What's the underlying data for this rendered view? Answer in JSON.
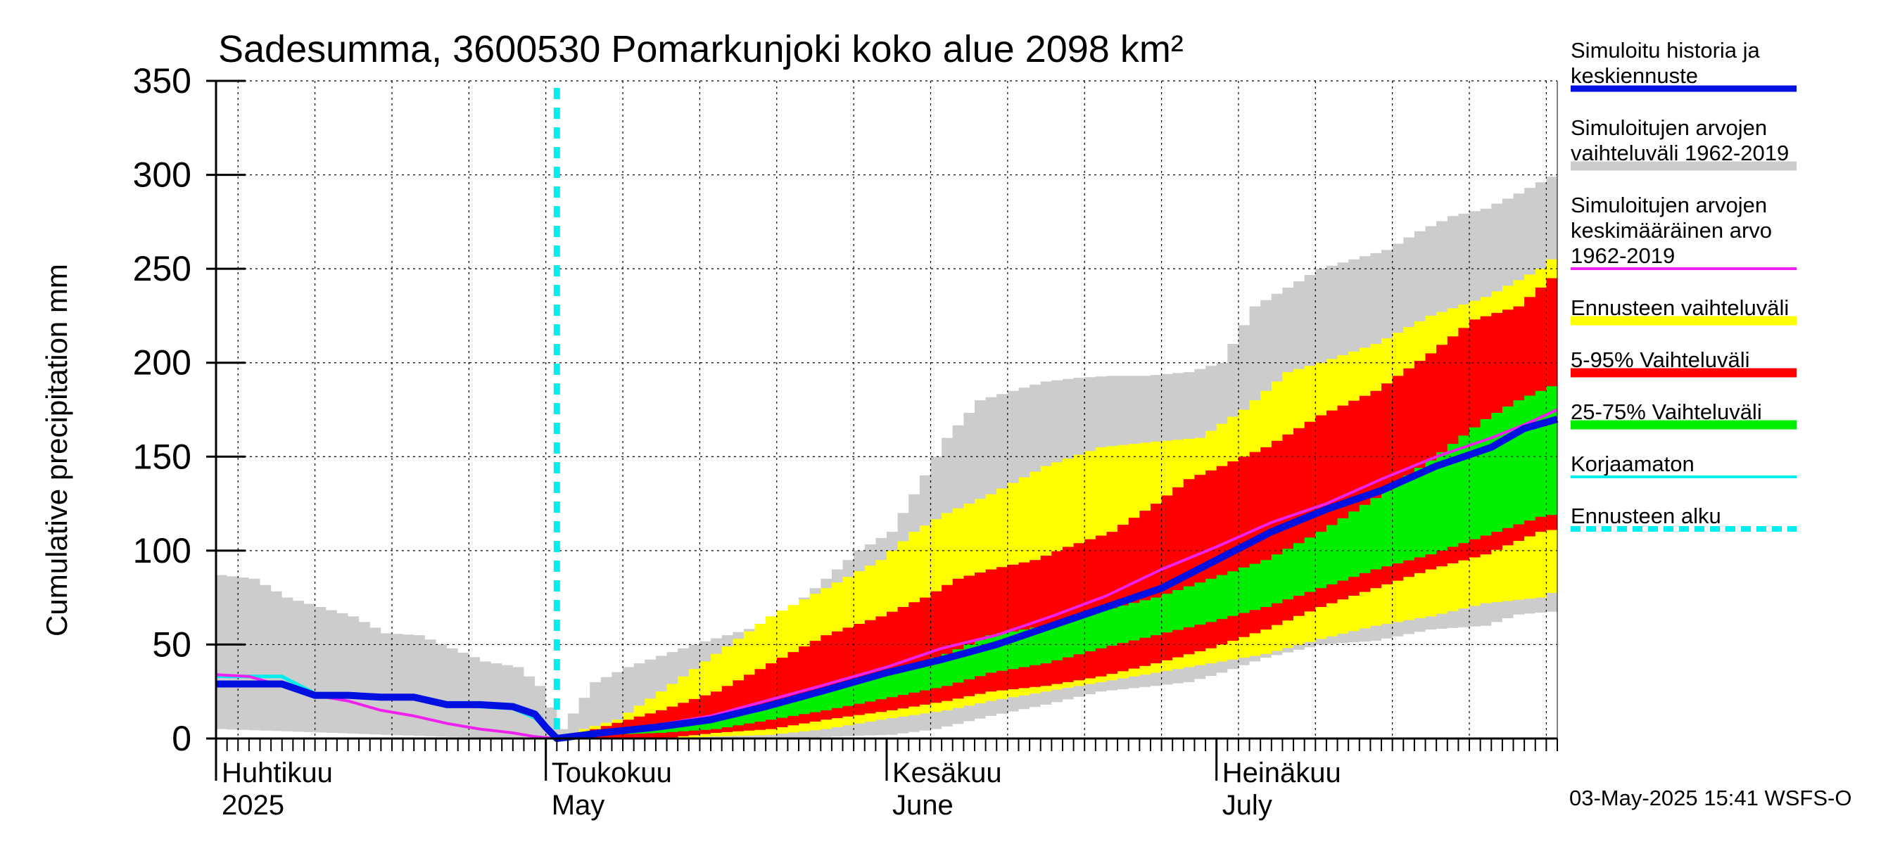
{
  "chart_data": {
    "type": "area",
    "title": "Sadesumma, 3600530 Pomarkunjoki koko alue 2098 km²",
    "ylabel": "Cumulative precipitation   mm",
    "ylim": [
      0,
      350
    ],
    "yticks": [
      "0",
      "50",
      "100",
      "150",
      "200",
      "250",
      "300",
      "350"
    ],
    "xlim_days": [
      0,
      122
    ],
    "month_labels": [
      {
        "day": 0,
        "line1": "Huhtikuu",
        "line2": "2025"
      },
      {
        "day": 30,
        "line1": "Toukokuu",
        "line2": "May"
      },
      {
        "day": 61,
        "line1": "Kesäkuu",
        "line2": "June"
      },
      {
        "day": 91,
        "line1": "Heinäkuu",
        "line2": "July"
      }
    ],
    "forecast_start_day": 31,
    "grid": true,
    "legend_position": "right",
    "legend": [
      {
        "key": "sim",
        "label": "Simuloitu historia ja keskiennuste",
        "lines": [
          "Simuloitu historia ja",
          "keskiennuste"
        ],
        "color": "#0010e0"
      },
      {
        "key": "range_hist",
        "label": "Simuloitujen arvojen vaihteluväli 1962-2019",
        "lines": [
          "Simuloitujen arvojen",
          "vaihteluväli 1962-2019"
        ],
        "color": "#cccccc"
      },
      {
        "key": "mean_hist",
        "label": "Simuloitujen arvojen keskimääräinen arvo 1962-2019",
        "lines": [
          "Simuloitujen arvojen",
          "keskimääräinen arvo",
          "   1962-2019"
        ],
        "color": "#ee22ee"
      },
      {
        "key": "fc_range",
        "label": "Ennusteen vaihteluväli",
        "lines": [
          "Ennusteen vaihteluväli"
        ],
        "color": "#ffff00"
      },
      {
        "key": "p5_95",
        "label": "5-95% Vaihteluväli",
        "lines": [
          "5-95% Vaihteluväli"
        ],
        "color": "#ff0000"
      },
      {
        "key": "p25_75",
        "label": "25-75% Vaihteluväli",
        "lines": [
          "25-75% Vaihteluväli"
        ],
        "color": "#00ee00"
      },
      {
        "key": "uncorr",
        "label": "Korjaamaton",
        "lines": [
          "Korjaamaton"
        ],
        "color": "#00eeee"
      },
      {
        "key": "fc_start",
        "label": "Ennusteen alku",
        "lines": [
          "Ennusteen alku"
        ],
        "color": "#00eeee"
      }
    ],
    "series": [
      {
        "key": "range_hist_upper",
        "x": [
          0,
          3,
          6,
          9,
          12,
          15,
          18,
          21,
          24,
          27,
          29,
          31,
          34,
          37,
          40,
          43,
          46,
          49,
          52,
          55,
          58,
          61,
          63,
          66,
          69,
          72,
          75,
          78,
          81,
          84,
          88,
          91,
          94,
          97,
          100,
          103,
          106,
          109,
          112,
          115,
          118,
          122
        ],
        "y": [
          87,
          85,
          75,
          70,
          65,
          56,
          55,
          48,
          41,
          38,
          28,
          5,
          30,
          38,
          44,
          50,
          55,
          60,
          70,
          85,
          100,
          110,
          130,
          160,
          180,
          185,
          190,
          192,
          193,
          193,
          195,
          200,
          230,
          240,
          250,
          255,
          260,
          270,
          278,
          282,
          290,
          302
        ]
      },
      {
        "key": "range_hist_lower",
        "x": [
          0,
          10,
          20,
          30,
          31,
          40,
          50,
          61,
          65,
          70,
          75,
          80,
          85,
          88,
          91,
          95,
          100,
          105,
          110,
          115,
          118,
          122
        ],
        "y": [
          5,
          3,
          1,
          0,
          0,
          0,
          0,
          2,
          5,
          12,
          18,
          25,
          28,
          30,
          35,
          43,
          50,
          52,
          58,
          60,
          66,
          68
        ]
      },
      {
        "key": "fc_range_upper",
        "x": [
          31,
          33,
          36,
          40,
          45,
          50,
          55,
          60,
          63,
          66,
          70,
          75,
          80,
          85,
          89,
          93,
          97,
          100,
          105,
          110,
          115,
          120,
          122
        ],
        "y": [
          0,
          5,
          10,
          25,
          45,
          65,
          80,
          95,
          110,
          120,
          130,
          145,
          155,
          158,
          160,
          175,
          195,
          200,
          210,
          225,
          235,
          250,
          260
        ]
      },
      {
        "key": "fc_range_lower",
        "x": [
          31,
          40,
          50,
          55,
          60,
          66,
          70,
          75,
          80,
          85,
          90,
          95,
          100,
          105,
          110,
          115,
          120,
          122
        ],
        "y": [
          0,
          0,
          2,
          5,
          10,
          15,
          20,
          25,
          30,
          35,
          40,
          45,
          53,
          60,
          65,
          72,
          75,
          80
        ]
      },
      {
        "key": "p5_95_upper",
        "x": [
          31,
          34,
          37,
          40,
          45,
          50,
          55,
          60,
          64,
          67,
          70,
          74,
          77,
          81,
          85,
          88,
          91,
          95,
          100,
          105,
          110,
          114,
          118,
          122
        ],
        "y": [
          0,
          5,
          10,
          15,
          25,
          40,
          55,
          65,
          75,
          85,
          90,
          95,
          102,
          110,
          125,
          138,
          145,
          155,
          172,
          185,
          205,
          223,
          230,
          250
        ]
      },
      {
        "key": "p5_95_lower",
        "x": [
          31,
          40,
          45,
          50,
          55,
          61,
          66,
          70,
          75,
          80,
          85,
          90,
          95,
          100,
          105,
          110,
          115,
          120,
          122
        ],
        "y": [
          0,
          0,
          3,
          5,
          10,
          15,
          20,
          25,
          28,
          33,
          40,
          48,
          58,
          70,
          80,
          90,
          98,
          110,
          112
        ]
      },
      {
        "key": "p25_75_upper",
        "x": [
          31,
          35,
          40,
          45,
          50,
          55,
          61,
          66,
          70,
          75,
          80,
          85,
          90,
          95,
          100,
          105,
          110,
          115,
          118,
          122
        ],
        "y": [
          0,
          3,
          5,
          10,
          18,
          26,
          35,
          45,
          55,
          60,
          68,
          75,
          85,
          95,
          110,
          128,
          148,
          170,
          180,
          190
        ]
      },
      {
        "key": "p25_75_lower",
        "x": [
          31,
          35,
          40,
          45,
          50,
          55,
          61,
          66,
          70,
          75,
          80,
          85,
          90,
          95,
          100,
          105,
          110,
          115,
          120,
          122
        ],
        "y": [
          0,
          2,
          3,
          5,
          10,
          15,
          22,
          28,
          35,
          40,
          48,
          55,
          62,
          70,
          80,
          90,
          98,
          108,
          118,
          120
        ]
      },
      {
        "key": "mean_hist",
        "x": [
          0,
          3,
          6,
          9,
          12,
          15,
          18,
          21,
          24,
          27,
          29,
          31,
          35,
          40,
          45,
          50,
          55,
          61,
          66,
          71,
          76,
          81,
          86,
          91,
          96,
          101,
          106,
          111,
          116,
          119,
          122
        ],
        "y": [
          34,
          33,
          28,
          23,
          20,
          15,
          12,
          8,
          5,
          3,
          1,
          0,
          3,
          7,
          12,
          20,
          28,
          38,
          48,
          55,
          65,
          76,
          90,
          102,
          115,
          125,
          138,
          150,
          160,
          167,
          175
        ]
      },
      {
        "key": "sim",
        "x": [
          0,
          3,
          6,
          9,
          12,
          15,
          18,
          21,
          24,
          27,
          29,
          30,
          31,
          35,
          40,
          45,
          50,
          55,
          61,
          66,
          71,
          76,
          81,
          86,
          91,
          96,
          101,
          106,
          111,
          116,
          119,
          122
        ],
        "y": [
          29,
          29,
          29,
          23,
          23,
          22,
          22,
          18,
          18,
          17,
          13,
          6,
          0,
          3,
          6,
          10,
          17,
          25,
          35,
          42,
          50,
          60,
          70,
          80,
          95,
          110,
          122,
          132,
          145,
          155,
          165,
          170
        ]
      },
      {
        "key": "uncorr",
        "x": [
          0,
          3,
          6,
          9,
          12,
          15,
          18,
          21,
          24,
          27,
          29,
          30,
          31
        ],
        "y": [
          33,
          33,
          33,
          24,
          23,
          22,
          22,
          18,
          17,
          16,
          11,
          5,
          0
        ]
      }
    ]
  },
  "footer": {
    "timestamp": "03-May-2025 15:41 WSFS-O"
  }
}
